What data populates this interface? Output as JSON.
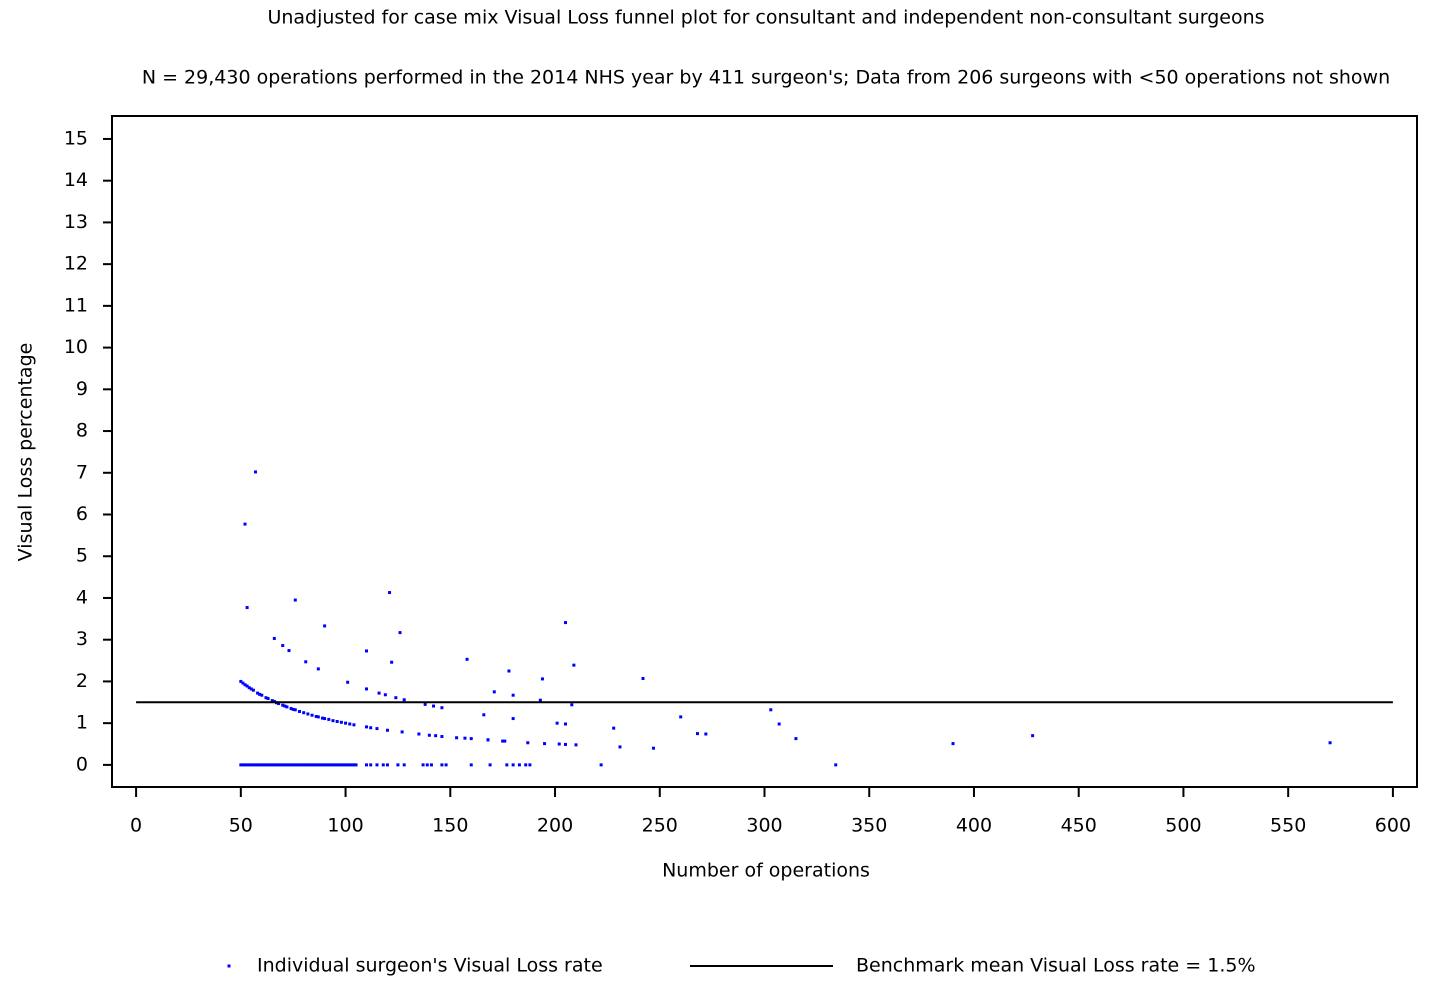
{
  "chart_data": {
    "type": "scatter",
    "title": "Unadjusted for case mix Visual Loss funnel plot for consultant and independent non-consultant surgeons",
    "subtitle": "N = 29,430 operations performed in the 2014 NHS year by 411 surgeon's; Data from 206 surgeons with <50 operations not shown",
    "xlabel": "Number of operations",
    "ylabel": "Visual Loss percentage",
    "xlim": [
      -11.5,
      611.5
    ],
    "ylim": [
      -0.53,
      15.55
    ],
    "xticks": [
      0,
      50,
      100,
      150,
      200,
      250,
      300,
      350,
      400,
      450,
      500,
      550,
      600
    ],
    "yticks": [
      0,
      1,
      2,
      3,
      4,
      5,
      6,
      7,
      8,
      9,
      10,
      11,
      12,
      13,
      14,
      15
    ],
    "series": [
      {
        "name": "Individual surgeon's Visual Loss rate",
        "type": "scatter",
        "color": "#0000ff",
        "x": [
          50,
          51,
          52,
          53,
          54,
          55,
          56,
          57,
          58,
          59,
          60,
          61,
          62,
          63,
          64,
          65,
          66,
          67,
          68,
          69,
          70,
          71,
          72,
          73,
          74,
          75,
          76,
          77,
          78,
          79,
          80,
          81,
          82,
          83,
          84,
          85,
          86,
          87,
          88,
          89,
          90,
          91,
          92,
          93,
          94,
          95,
          96,
          97,
          98,
          99,
          100,
          101,
          102,
          103,
          104,
          105,
          110,
          112,
          115,
          118,
          120,
          125,
          128,
          137,
          139,
          141,
          146,
          148,
          160,
          169,
          177,
          180,
          183,
          186,
          188,
          222,
          334,
          50,
          51,
          52,
          53,
          54,
          55,
          56,
          58,
          59,
          60,
          62,
          63,
          65,
          66,
          67,
          68,
          70,
          71,
          72,
          74,
          75,
          76,
          78,
          80,
          82,
          84,
          86,
          87,
          89,
          90,
          92,
          94,
          96,
          98,
          100,
          102,
          104,
          110,
          112,
          115,
          120,
          127,
          135,
          140,
          143,
          146,
          153,
          157,
          160,
          168,
          175,
          187,
          195,
          202,
          205,
          210,
          231,
          247,
          390,
          570,
          52,
          57,
          53,
          76,
          90,
          121,
          126,
          110,
          122,
          158,
          178,
          194,
          205,
          209,
          242,
          66,
          70,
          73,
          81,
          87,
          101,
          110,
          116,
          119,
          124,
          128,
          138,
          142,
          146,
          166,
          171,
          180,
          180,
          193,
          201,
          205,
          208,
          228,
          260,
          268,
          272,
          303,
          307,
          315,
          428,
          168,
          176
        ],
        "values": [
          0,
          0,
          0,
          0,
          0,
          0,
          0,
          0,
          0,
          0,
          0,
          0,
          0,
          0,
          0,
          0,
          0,
          0,
          0,
          0,
          0,
          0,
          0,
          0,
          0,
          0,
          0,
          0,
          0,
          0,
          0,
          0,
          0,
          0,
          0,
          0,
          0,
          0,
          0,
          0,
          0,
          0,
          0,
          0,
          0,
          0,
          0,
          0,
          0,
          0,
          0,
          0,
          0,
          0,
          0,
          0,
          0,
          0,
          0,
          0,
          0,
          0,
          0,
          0,
          0,
          0,
          0,
          0,
          0,
          0,
          0,
          0,
          0,
          0,
          0,
          0,
          0,
          2.0,
          1.96,
          1.92,
          1.89,
          1.85,
          1.82,
          1.79,
          1.72,
          1.69,
          1.67,
          1.61,
          1.59,
          1.54,
          1.52,
          1.49,
          1.47,
          1.43,
          1.41,
          1.39,
          1.35,
          1.33,
          1.32,
          1.28,
          1.25,
          1.22,
          1.19,
          1.16,
          1.15,
          1.12,
          1.11,
          1.09,
          1.06,
          1.04,
          1.02,
          1.0,
          0.98,
          0.96,
          0.91,
          0.89,
          0.87,
          0.83,
          0.79,
          0.74,
          0.71,
          0.7,
          0.68,
          0.65,
          0.64,
          0.63,
          0.6,
          0.57,
          0.53,
          0.51,
          0.5,
          0.49,
          0.48,
          0.43,
          0.4,
          0.51,
          0.53,
          5.77,
          7.02,
          3.77,
          3.95,
          3.33,
          4.13,
          3.17,
          2.73,
          2.46,
          2.53,
          2.25,
          2.06,
          3.41,
          2.39,
          2.07,
          3.03,
          2.86,
          2.74,
          2.47,
          2.3,
          1.98,
          1.82,
          1.72,
          1.68,
          1.61,
          1.56,
          1.45,
          1.41,
          1.37,
          1.2,
          1.75,
          1.11,
          1.67,
          1.55,
          1.0,
          0.98,
          1.44,
          0.88,
          1.15,
          0.75,
          0.74,
          1.32,
          0.98,
          0.63,
          0.7,
          0.6,
          0.57
        ]
      },
      {
        "name": "Benchmark mean Visual Loss rate = 1.5%",
        "type": "line",
        "color": "#000000",
        "x": [
          0,
          600
        ],
        "values": [
          1.5,
          1.5
        ]
      }
    ]
  }
}
